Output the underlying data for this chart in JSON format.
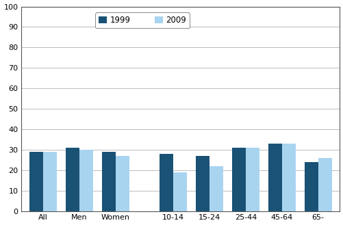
{
  "categories": [
    "All",
    "Men",
    "Women",
    "10-14",
    "15-24",
    "25-44",
    "45-64",
    "65-"
  ],
  "values_1999": [
    29,
    31,
    29,
    28,
    27,
    31,
    33,
    24
  ],
  "values_2009": [
    29,
    30,
    27,
    19,
    22,
    31,
    33,
    26
  ],
  "color_1999": "#1a5276",
  "color_2009": "#a8d4f0",
  "legend_labels": [
    "1999",
    "2009"
  ],
  "ylim": [
    0,
    100
  ],
  "yticks": [
    0,
    10,
    20,
    30,
    40,
    50,
    60,
    70,
    80,
    90,
    100
  ],
  "bar_width": 0.38,
  "figsize": [
    5.02,
    3.29
  ],
  "dpi": 100,
  "x_positions": [
    0,
    1,
    2,
    3.6,
    4.6,
    5.6,
    6.6,
    7.6
  ],
  "xlim": [
    -0.6,
    8.2
  ]
}
